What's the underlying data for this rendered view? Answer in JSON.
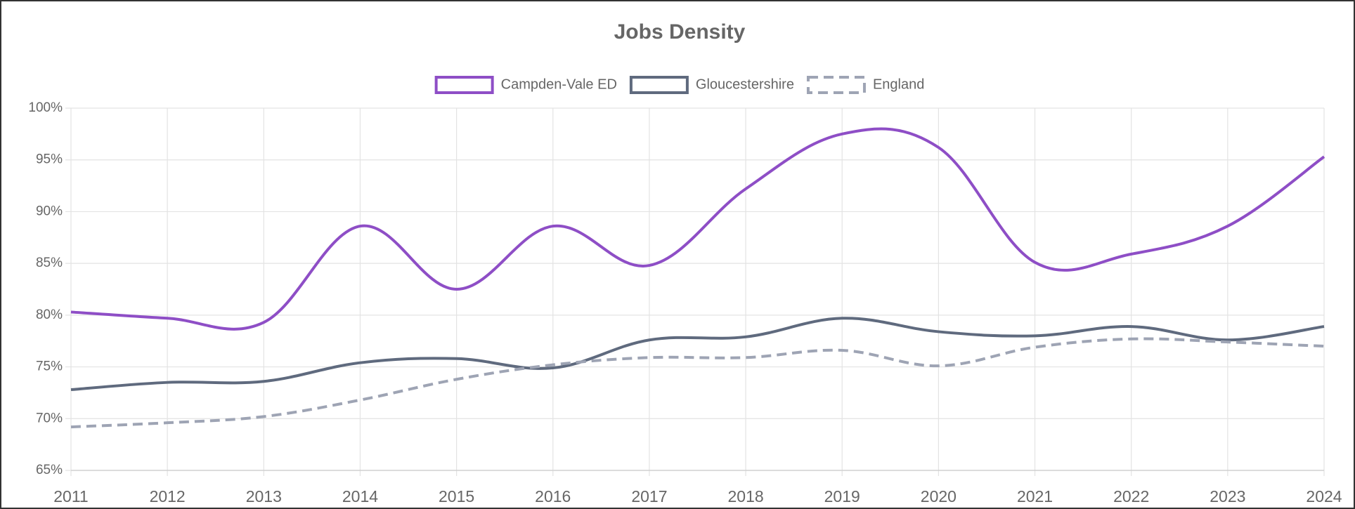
{
  "chart_data": {
    "type": "line",
    "title": "Jobs Density",
    "categories": [
      "2011",
      "2012",
      "2013",
      "2014",
      "2015",
      "2016",
      "2017",
      "2018",
      "2019",
      "2020",
      "2021",
      "2022",
      "2023",
      "2024"
    ],
    "series": [
      {
        "name": "Campden-Vale ED",
        "color": "#8e4ec6",
        "dashed": false,
        "values": [
          80.3,
          79.7,
          79.3,
          88.6,
          82.5,
          88.6,
          84.8,
          92.2,
          97.5,
          96.2,
          85.1,
          85.9,
          88.6,
          95.3
        ]
      },
      {
        "name": "Gloucestershire",
        "color": "#5f6a7e",
        "dashed": false,
        "values": [
          72.8,
          73.5,
          73.6,
          75.4,
          75.8,
          74.9,
          77.6,
          77.9,
          79.7,
          78.4,
          78.0,
          78.9,
          77.6,
          78.9
        ]
      },
      {
        "name": "England",
        "color": "#9ea4b4",
        "dashed": true,
        "values": [
          69.2,
          69.6,
          70.2,
          71.8,
          73.8,
          75.2,
          75.9,
          75.9,
          76.6,
          75.1,
          76.9,
          77.7,
          77.4,
          77.0
        ]
      }
    ],
    "ylim": [
      65,
      100
    ],
    "yticks": [
      {
        "value": 65,
        "label": "65%"
      },
      {
        "value": 70,
        "label": "70%"
      },
      {
        "value": 75,
        "label": "75%"
      },
      {
        "value": 80,
        "label": "80%"
      },
      {
        "value": 85,
        "label": "85%"
      },
      {
        "value": 90,
        "label": "90%"
      },
      {
        "value": 95,
        "label": "95%"
      },
      {
        "value": 100,
        "label": "100%"
      }
    ],
    "grid": true,
    "legend": "top"
  }
}
